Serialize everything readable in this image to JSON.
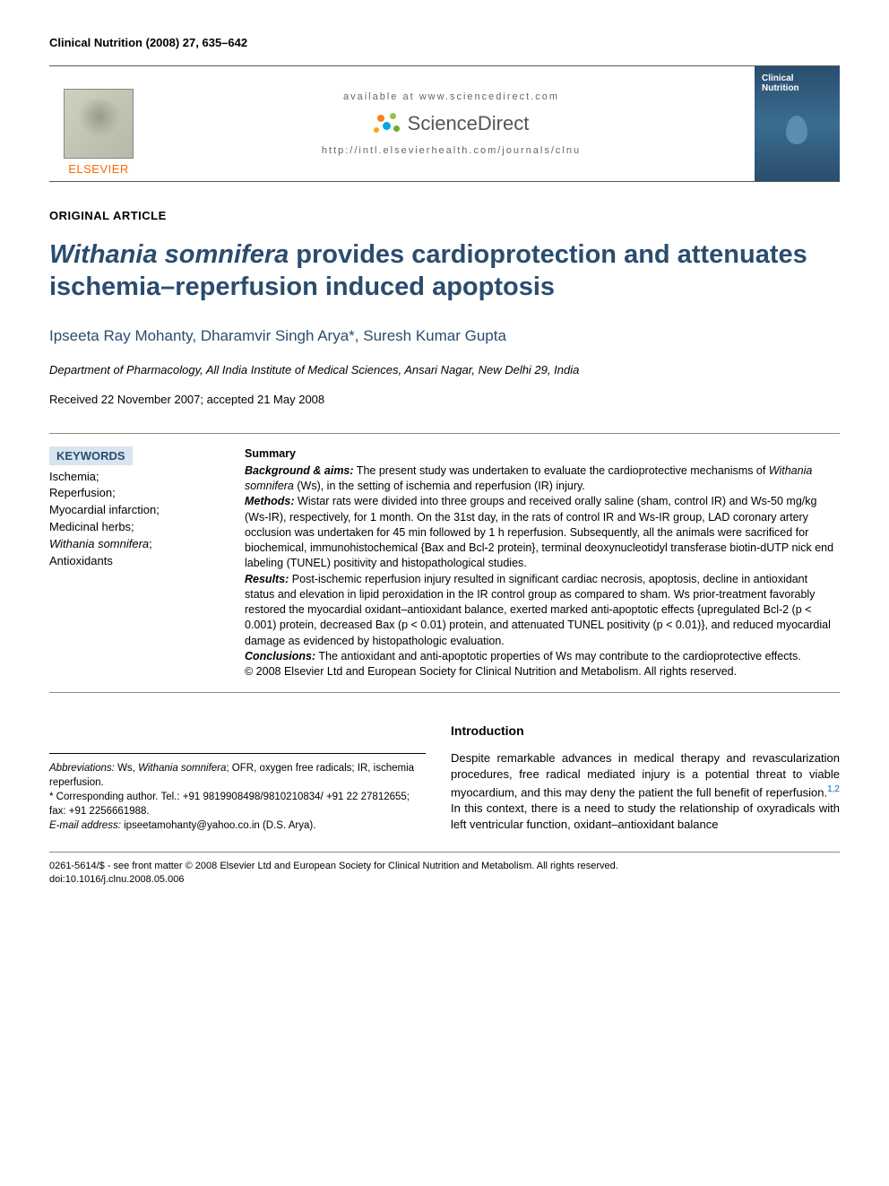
{
  "journal_header": "Clinical Nutrition (2008) 27, 635–642",
  "banner": {
    "available_at": "available at www.sciencedirect.com",
    "sd_brand": "ScienceDirect",
    "journal_url": "http://intl.elsevierhealth.com/journals/clnu",
    "publisher_name": "ELSEVIER",
    "cover_title": "Clinical Nutrition",
    "sd_dot_colors": [
      "#f58220",
      "#8cc63f",
      "#00a9e0",
      "#f9a61a",
      "#6ab023"
    ]
  },
  "article_type": "ORIGINAL ARTICLE",
  "title": {
    "italic_part": "Withania somnifera",
    "rest": " provides cardioprotection and attenuates ischemia–reperfusion induced apoptosis"
  },
  "authors": "Ipseeta Ray Mohanty, Dharamvir Singh Arya*, Suresh Kumar Gupta",
  "affiliation": "Department of Pharmacology, All India Institute of Medical Sciences, Ansari Nagar, New Delhi 29, India",
  "dates": "Received 22 November 2007; accepted 21 May 2008",
  "keywords": {
    "heading": "KEYWORDS",
    "items": [
      "Ischemia;",
      "Reperfusion;",
      "Myocardial infarction;",
      "Medicinal herbs;",
      "Withania somnifera;",
      "Antioxidants"
    ],
    "italic_index": 4
  },
  "summary": {
    "heading": "Summary",
    "background_label": "Background & aims:",
    "background": " The present study was undertaken to evaluate the cardioprotective mechanisms of ",
    "background_species": "Withania somnifera",
    "background_after": " (Ws), in the setting of ischemia and reperfusion (IR) injury.",
    "methods_label": "Methods:",
    "methods": " Wistar rats were divided into three groups and received orally saline (sham, control IR) and Ws-50 mg/kg (Ws-IR), respectively, for 1 month. On the 31st day, in the rats of control IR and Ws-IR group, LAD coronary artery occlusion was undertaken for 45 min followed by 1 h reperfusion. Subsequently, all the animals were sacrificed for biochemical, immunohistochemical {Bax and Bcl-2 protein}, terminal deoxynucleotidyl transferase biotin-dUTP nick end labeling (TUNEL) positivity and histopathological studies.",
    "results_label": "Results:",
    "results": " Post-ischemic reperfusion injury resulted in significant cardiac necrosis, apoptosis, decline in antioxidant status and elevation in lipid peroxidation in the IR control group as compared to sham. Ws prior-treatment favorably restored the myocardial oxidant–antioxidant balance, exerted marked anti-apoptotic effects {upregulated Bcl-2 (p < 0.001) protein, decreased Bax (p < 0.01) protein, and attenuated TUNEL positivity (p < 0.01)}, and reduced myocardial damage as evidenced by histopathologic evaluation.",
    "conclusions_label": "Conclusions:",
    "conclusions": " The antioxidant and anti-apoptotic properties of Ws may contribute to the cardioprotective effects.",
    "copyright": "© 2008 Elsevier Ltd and European Society for Clinical Nutrition and Metabolism. All rights reserved."
  },
  "footnotes": {
    "abbrev_label": "Abbreviations:",
    "abbrev": " Ws, ",
    "abbrev_species": "Withania somnifera",
    "abbrev_after": "; OFR, oxygen free radicals; IR, ischemia reperfusion.",
    "corresp": "* Corresponding author. Tel.: +91 9819908498/9810210834/ +91 22 27812655; fax: +91 2256661988.",
    "email_label": "E-mail address:",
    "email": " ipseetamohanty@yahoo.co.in (D.S. Arya)."
  },
  "introduction": {
    "heading": "Introduction",
    "text_before_ref": "Despite remarkable advances in medical therapy and revascularization procedures, free radical mediated injury is a potential threat to viable myocardium, and this may deny the patient the full benefit of reperfusion.",
    "ref": "1,2",
    "text_after_ref": " In this context, there is a need to study the relationship of oxyradicals with left ventricular function, oxidant–antioxidant balance"
  },
  "page_footer": {
    "line1": "0261-5614/$ - see front matter © 2008 Elsevier Ltd and European Society for Clinical Nutrition and Metabolism. All rights reserved.",
    "line2": "doi:10.1016/j.clnu.2008.05.006"
  },
  "colors": {
    "heading_blue": "#2a4d6f",
    "keyword_bg": "#d8e4ef",
    "publisher_orange": "#ff6600",
    "ref_blue": "#0066cc"
  }
}
